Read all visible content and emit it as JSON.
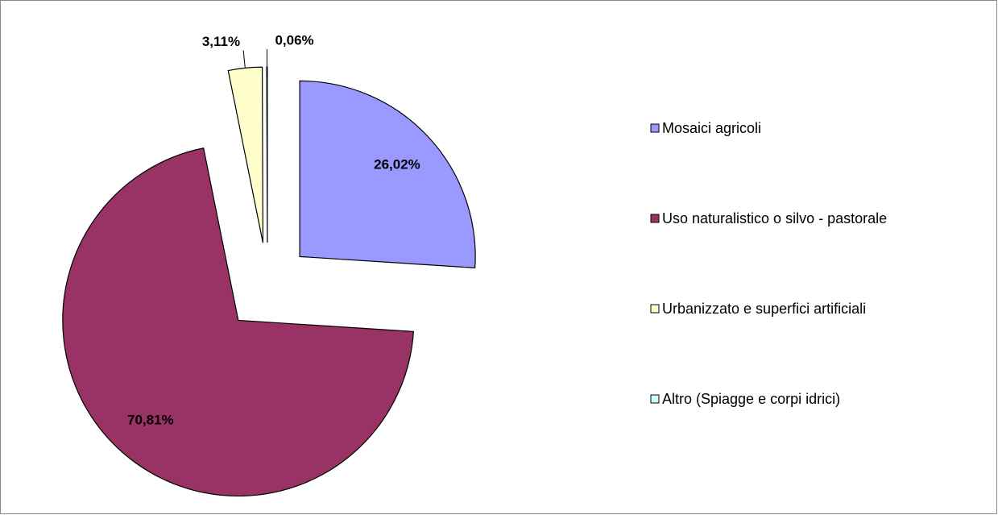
{
  "chart_data": {
    "type": "pie",
    "categories": [
      "Mosaici agricoli",
      "Uso naturalistico o silvo - pastorale",
      "Urbanizzato e superfici artificiali",
      "Altro (Spiagge e corpi idrici)"
    ],
    "values": [
      26.02,
      70.81,
      3.11,
      0.06
    ],
    "value_labels": [
      "26,02%",
      "70,81%",
      "3,11%",
      "0,06%"
    ],
    "colors": [
      "#9999ff",
      "#993366",
      "#ffffcc",
      "#ccffff"
    ],
    "legend": "right"
  }
}
